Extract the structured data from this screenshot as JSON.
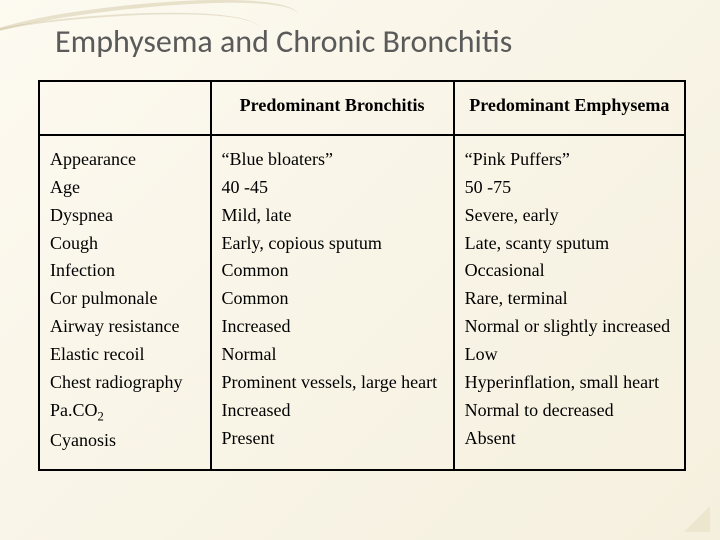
{
  "title": "Emphysema and Chronic Bronchitis",
  "headers": {
    "blank": "",
    "col2": "Predominant Bronchitis",
    "col3": "Predominant Emphysema"
  },
  "rows_col1": [
    "Appearance",
    "Age",
    "Dyspnea",
    "Cough",
    "Infection",
    "Cor pulmonale",
    "Airway resistance",
    "Elastic recoil",
    "Chest radiography",
    "Pa.CO",
    "Cyanosis"
  ],
  "paco2_sub": "2",
  "rows_col2": [
    "“Blue bloaters”",
    "40 -45",
    "Mild, late",
    "Early, copious sputum",
    "Common",
    "Common",
    "Increased",
    "Normal",
    "Prominent vessels, large heart",
    "Increased",
    "Present"
  ],
  "rows_col3": [
    "“Pink Puffers”",
    "50 -75",
    "Severe, early",
    "Late, scanty sputum",
    "Occasional",
    "Rare, terminal",
    "Normal or slightly increased",
    "Low",
    "Hyperinflation, small heart",
    "Normal to decreased",
    "Absent"
  ]
}
